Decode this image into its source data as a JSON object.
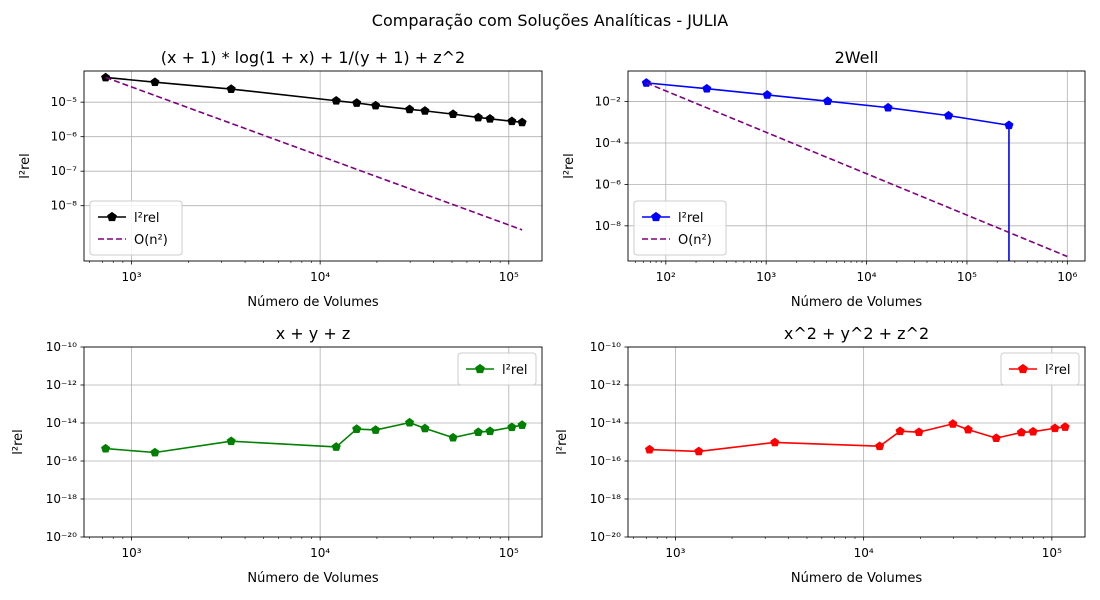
{
  "figure": {
    "suptitle": "Comparação com Soluções Analíticas - JULIA"
  },
  "chart_data": [
    {
      "type": "line",
      "title": "(x + 1) * log(1 + x) + 1/(y + 1) + z^2",
      "xlabel": "Número de Volumes",
      "ylabel": "l²rel",
      "xscale": "log",
      "yscale": "log",
      "xlim": [
        560,
        150000
      ],
      "ylim": [
        2.5e-10,
        8e-05
      ],
      "xticks": [
        1000,
        10000,
        100000
      ],
      "xtick_labels": [
        "10³",
        "10⁴",
        "10⁵"
      ],
      "yticks": [
        1e-08,
        1e-07,
        1e-06,
        1e-05
      ],
      "ytick_labels": [
        "10⁻⁸",
        "10⁻⁷",
        "10⁻⁶",
        "10⁻⁵"
      ],
      "grid": true,
      "legend_position": "lower-left",
      "series": [
        {
          "name": "l²rel",
          "color": "#000000",
          "marker": "pentagon",
          "linestyle": "solid",
          "x": [
            729,
            1331,
            3375,
            12167,
            15625,
            19683,
            29791,
            35937,
            50653,
            68921,
            79507,
            103823,
            117649
          ],
          "y": [
            5.2e-05,
            3.8e-05,
            2.4e-05,
            1.1e-05,
            9.5e-06,
            8e-06,
            6.2e-06,
            5.6e-06,
            4.5e-06,
            3.6e-06,
            3.3e-06,
            2.8e-06,
            2.6e-06
          ]
        },
        {
          "name": "O(n²)",
          "color": "#800080",
          "marker": "none",
          "linestyle": "dashed",
          "x": [
            729,
            117649
          ],
          "y": [
            5.2e-05,
            2e-09
          ]
        }
      ]
    },
    {
      "type": "line",
      "title": "2Well",
      "xlabel": "Número de Volumes",
      "ylabel": "l²rel",
      "xscale": "log",
      "yscale": "log",
      "xlim": [
        42,
        1500000
      ],
      "ylim": [
        2e-10,
        0.3
      ],
      "xticks": [
        100,
        1000,
        10000,
        100000,
        1000000
      ],
      "xtick_labels": [
        "10²",
        "10³",
        "10⁴",
        "10⁵",
        "10⁶"
      ],
      "yticks": [
        1e-08,
        1e-06,
        0.0001,
        0.01
      ],
      "ytick_labels": [
        "10⁻⁸",
        "10⁻⁶",
        "10⁻⁴",
        "10⁻²"
      ],
      "grid": true,
      "legend_position": "lower-left",
      "series": [
        {
          "name": "l²rel",
          "color": "#0000ff",
          "marker": "pentagon",
          "linestyle": "solid",
          "x": [
            64,
            256,
            1024,
            4096,
            16384,
            65536,
            262144
          ],
          "y": [
            0.08,
            0.042,
            0.021,
            0.0105,
            0.0051,
            0.0021,
            0.00072
          ],
          "drop_to_axis": true
        },
        {
          "name": "O(n²)",
          "color": "#800080",
          "marker": "none",
          "linestyle": "dashed",
          "x": [
            64,
            1000000
          ],
          "y": [
            0.08,
            3.3e-10
          ]
        }
      ]
    },
    {
      "type": "line",
      "title": "x + y + z",
      "xlabel": "Número de Volumes",
      "ylabel": "l²rel",
      "xscale": "log",
      "yscale": "log",
      "xlim": [
        560,
        150000
      ],
      "ylim": [
        1e-20,
        1e-10
      ],
      "xticks": [
        1000,
        10000,
        100000
      ],
      "xtick_labels": [
        "10³",
        "10⁴",
        "10⁵"
      ],
      "yticks": [
        1e-20,
        1e-18,
        1e-16,
        1e-14,
        1e-12,
        1e-10
      ],
      "ytick_labels": [
        "10⁻²⁰",
        "10⁻¹⁸",
        "10⁻¹⁶",
        "10⁻¹⁴",
        "10⁻¹²",
        "10⁻¹⁰"
      ],
      "grid": true,
      "legend_position": "upper-right",
      "series": [
        {
          "name": "l²rel",
          "color": "#008000",
          "marker": "pentagon",
          "linestyle": "solid",
          "x": [
            729,
            1331,
            3375,
            12167,
            15625,
            19683,
            29791,
            35937,
            50653,
            68921,
            79507,
            103823,
            117649
          ],
          "y": [
            4.5e-16,
            2.8e-16,
            1.1e-15,
            5.5e-16,
            4.8e-15,
            4.3e-15,
            1.05e-14,
            5.2e-15,
            1.7e-15,
            3.3e-15,
            3.7e-15,
            6e-15,
            7.8e-15
          ]
        }
      ]
    },
    {
      "type": "line",
      "title": "x^2 + y^2 + z^2",
      "xlabel": "Número de Volumes",
      "ylabel": "l²rel",
      "xscale": "log",
      "yscale": "log",
      "xlim": [
        560,
        150000
      ],
      "ylim": [
        1e-20,
        1e-10
      ],
      "xticks": [
        1000,
        10000,
        100000
      ],
      "xtick_labels": [
        "10³",
        "10⁴",
        "10⁵"
      ],
      "yticks": [
        1e-20,
        1e-18,
        1e-16,
        1e-14,
        1e-12,
        1e-10
      ],
      "ytick_labels": [
        "10⁻²⁰",
        "10⁻¹⁸",
        "10⁻¹⁶",
        "10⁻¹⁴",
        "10⁻¹²",
        "10⁻¹⁰"
      ],
      "grid": true,
      "legend_position": "upper-right",
      "series": [
        {
          "name": "l²rel",
          "color": "#ff0000",
          "marker": "pentagon",
          "linestyle": "solid",
          "x": [
            729,
            1331,
            3375,
            12167,
            15625,
            19683,
            29791,
            35937,
            50653,
            68921,
            79507,
            103823,
            117649
          ],
          "y": [
            4e-16,
            3.2e-16,
            9.5e-16,
            6e-16,
            3.7e-15,
            3.3e-15,
            9e-15,
            4.5e-15,
            1.6e-15,
            3.2e-15,
            3.5e-15,
            5.3e-15,
            6.2e-15
          ]
        }
      ]
    }
  ]
}
